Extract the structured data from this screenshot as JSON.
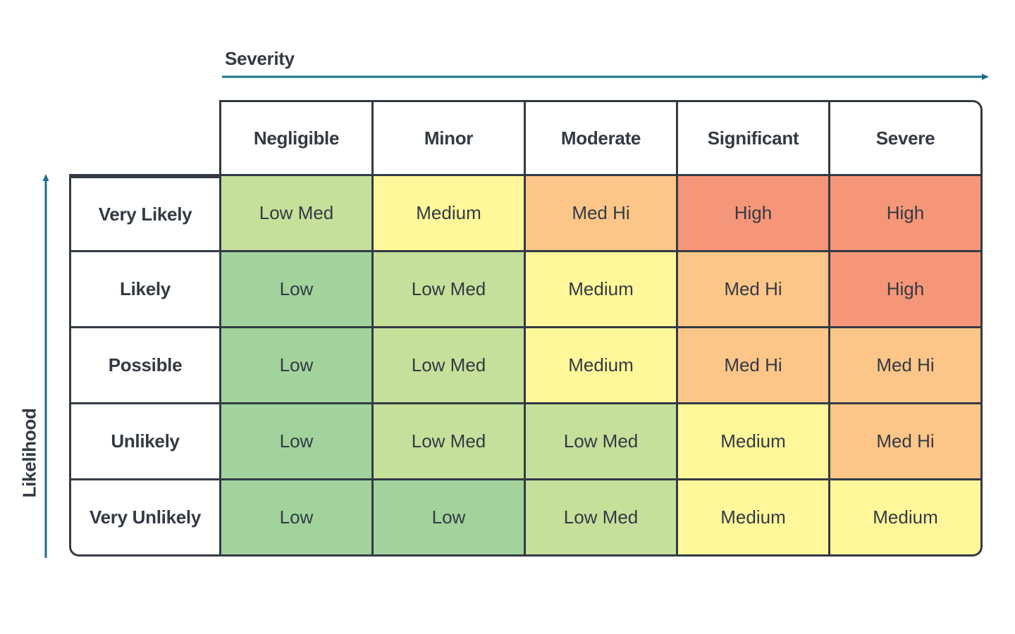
{
  "severity_axis": {
    "label": "Severity",
    "levels": [
      "Negligible",
      "Minor",
      "Moderate",
      "Significant",
      "Severe"
    ]
  },
  "likelihood_axis": {
    "label": "Likelihood",
    "levels": [
      "Very Likely",
      "Likely",
      "Possible",
      "Unlikely",
      "Very Unlikely"
    ]
  },
  "matrix": {
    "rows": [
      [
        "Low Med",
        "Medium",
        "Med Hi",
        "High",
        "High"
      ],
      [
        "Low",
        "Low Med",
        "Medium",
        "Med Hi",
        "High"
      ],
      [
        "Low",
        "Low Med",
        "Medium",
        "Med Hi",
        "Med Hi"
      ],
      [
        "Low",
        "Low Med",
        "Low Med",
        "Medium",
        "Med Hi"
      ],
      [
        "Low",
        "Low",
        "Low Med",
        "Medium",
        "Medium"
      ]
    ]
  },
  "colors": {
    "axis_arrow": "#1b6f8a",
    "grid_line": "#333a44",
    "Low": "#a2d39c",
    "Low Med": "#c5e09b",
    "Medium": "#fff799",
    "Med Hi": "#fdc689",
    "High": "#f69679"
  }
}
